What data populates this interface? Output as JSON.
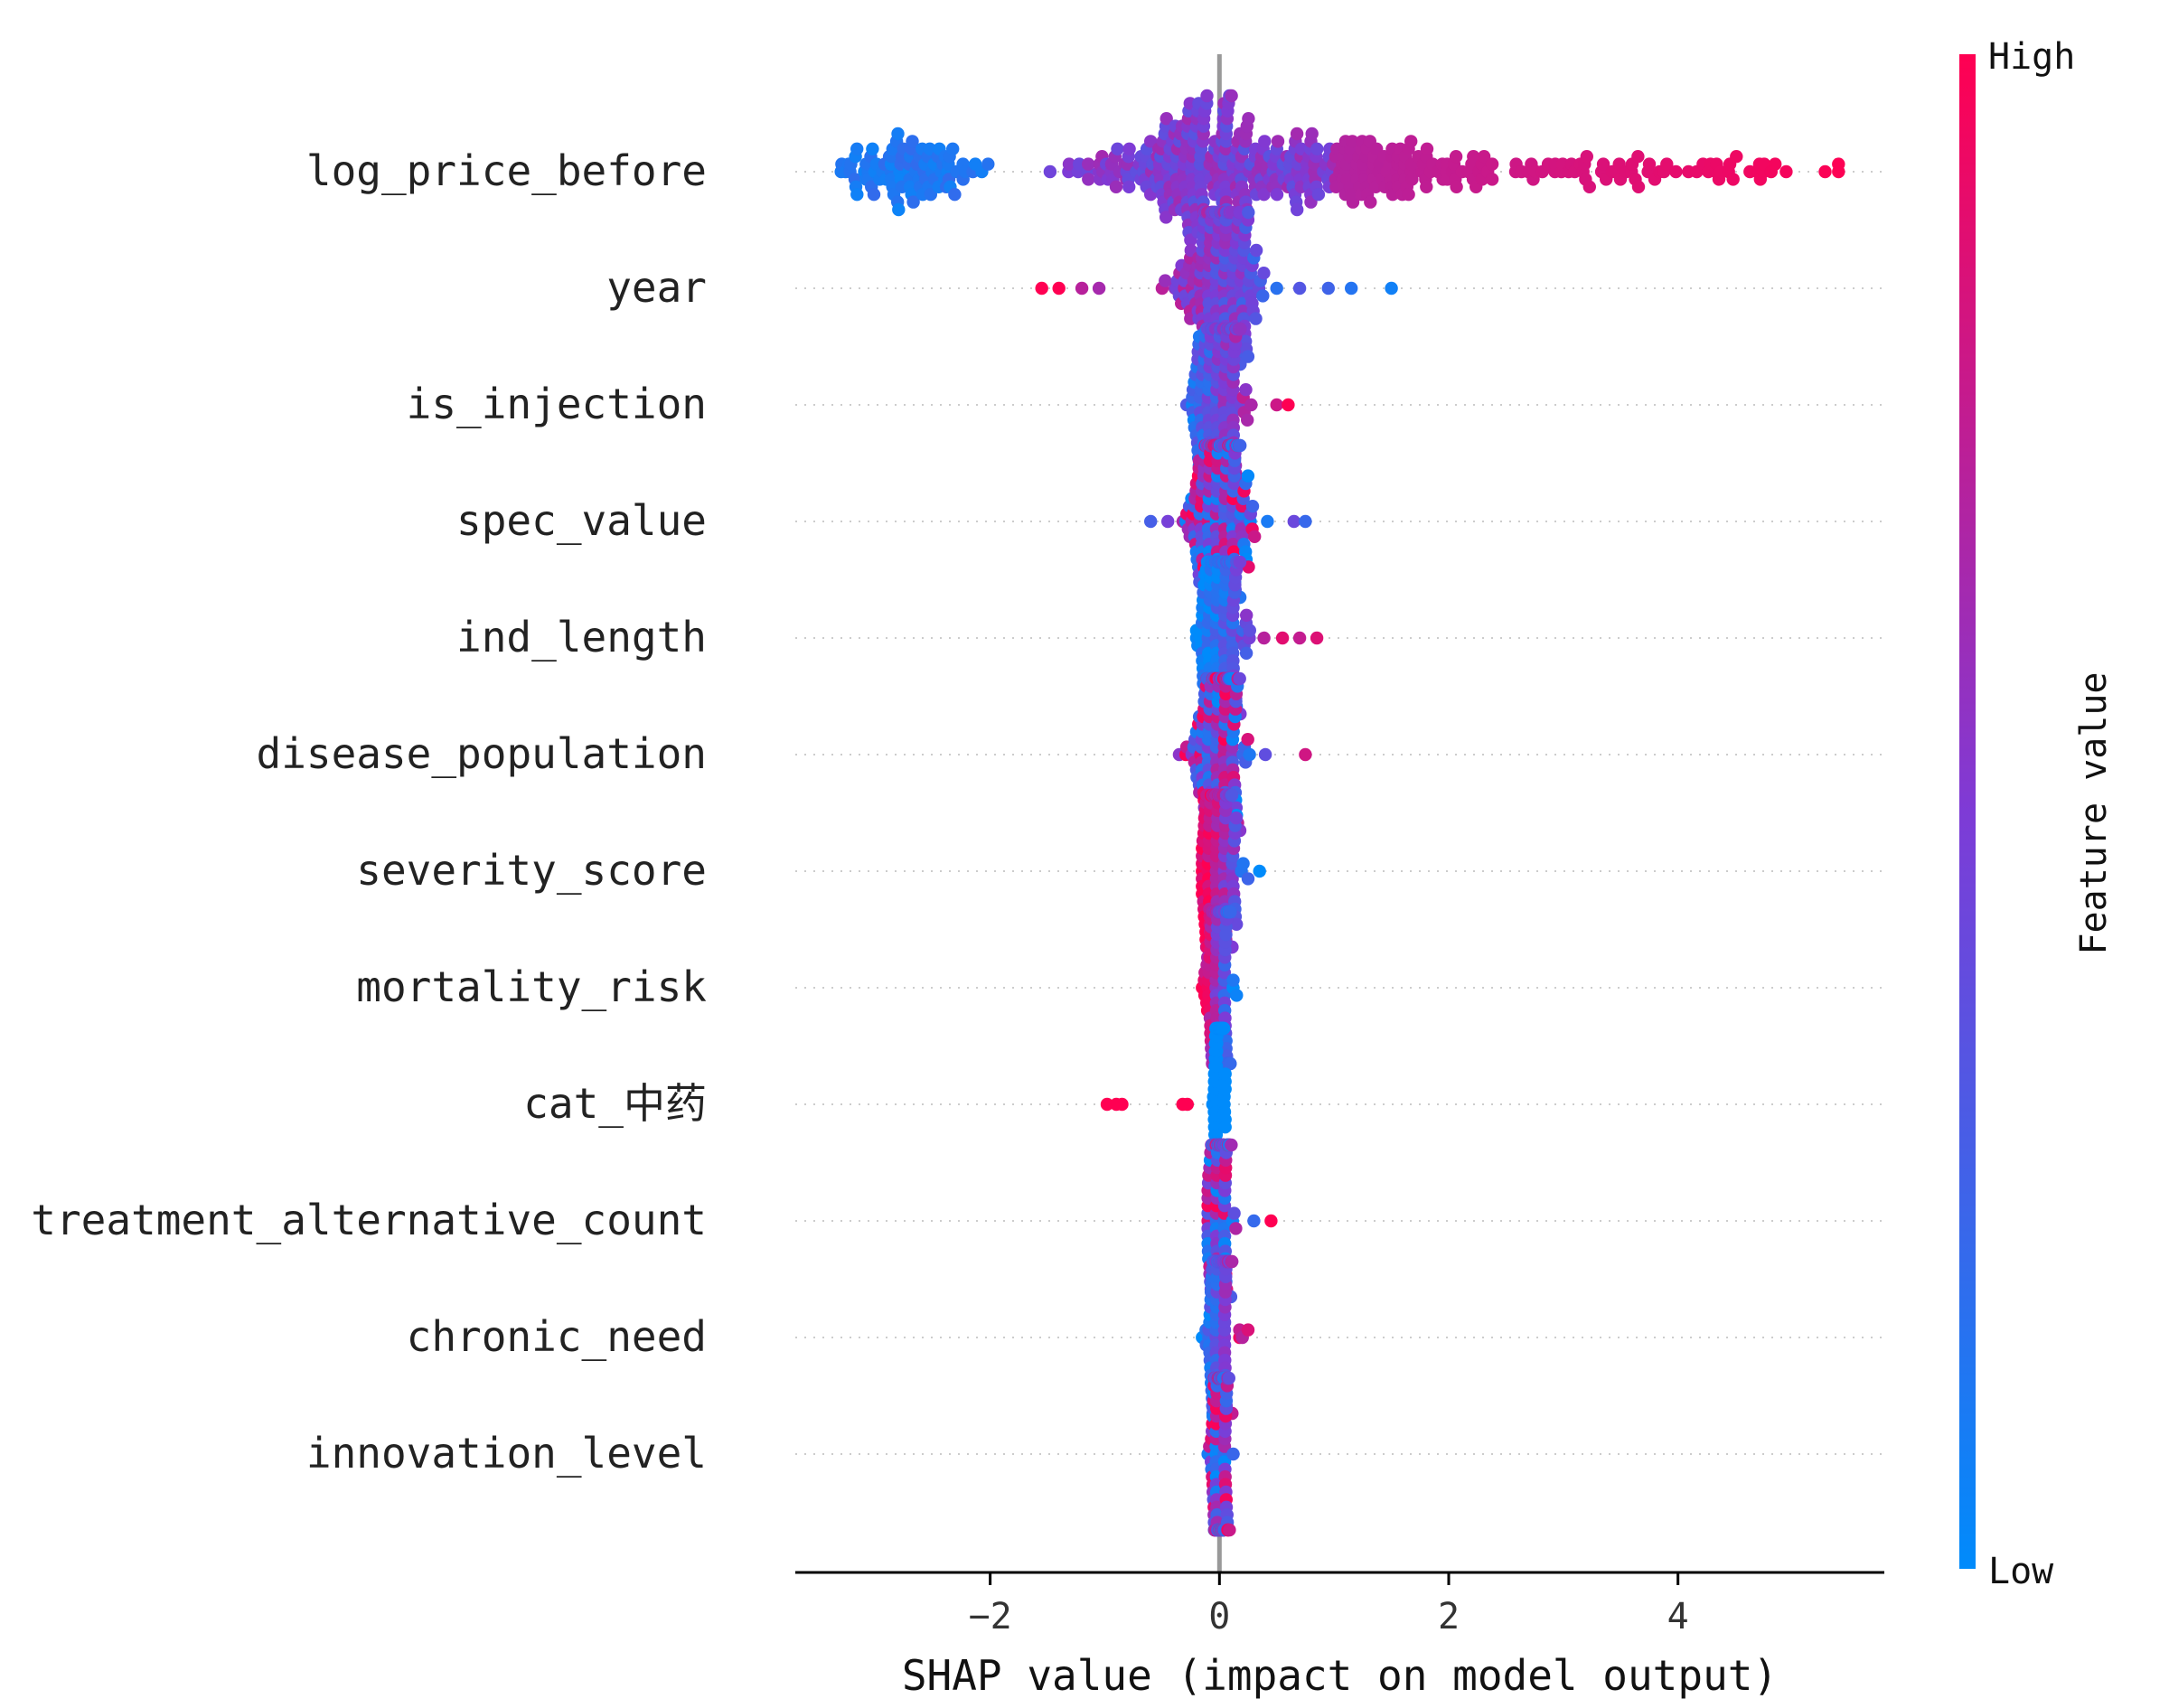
{
  "chart_data": {
    "type": "scatter",
    "subtype": "shap-beeswarm",
    "title": "",
    "xlabel": "SHAP value (impact on model output)",
    "ylabel": "",
    "xlim": [
      -3.7,
      5.8
    ],
    "xticks": [
      -2,
      0,
      2,
      4
    ],
    "grid": false,
    "features": [
      {
        "name": "log_price_before",
        "min": -3.3,
        "max": 5.4,
        "spread": 1.6,
        "count": 560,
        "dir": "pos",
        "weight": 1.0,
        "outliers_low": [],
        "outliers_high": []
      },
      {
        "name": "year",
        "min": -1.6,
        "max": 1.5,
        "spread": 0.35,
        "count": 260,
        "dir": "neg",
        "weight": 0.6,
        "outliers_low": [
          -1.55,
          -1.4,
          -1.2,
          -1.05,
          -0.5,
          -0.35
        ],
        "outliers_high": [
          0.5,
          0.7,
          0.95,
          1.15,
          1.5
        ]
      },
      {
        "name": "is_injection",
        "min": -0.45,
        "max": 0.65,
        "spread": 0.25,
        "count": 260,
        "dir": "pos",
        "weight": 0.55,
        "outliers_low": [],
        "outliers_high": [
          0.6,
          0.5
        ]
      },
      {
        "name": "spec_value",
        "min": -0.6,
        "max": 0.8,
        "spread": 0.3,
        "count": 260,
        "dir": "mixed",
        "weight": 0.5,
        "outliers_low": [
          -0.6,
          -0.45
        ],
        "outliers_high": [
          0.75,
          0.65
        ]
      },
      {
        "name": "ind_length",
        "min": -0.2,
        "max": 0.85,
        "spread": 0.22,
        "count": 220,
        "dir": "pos",
        "weight": 0.45,
        "outliers_low": [],
        "outliers_high": [
          0.85,
          0.7,
          0.55
        ]
      },
      {
        "name": "disease_population",
        "min": -0.35,
        "max": 0.75,
        "spread": 0.22,
        "count": 220,
        "dir": "mixed",
        "weight": 0.4,
        "outliers_low": [
          -0.35,
          -0.2
        ],
        "outliers_high": [
          0.75,
          0.4
        ]
      },
      {
        "name": "severity_score",
        "min": -0.15,
        "max": 0.35,
        "spread": 0.18,
        "count": 200,
        "dir": "neg",
        "weight": 0.35,
        "outliers_low": [],
        "outliers_high": [
          0.35,
          0.25
        ]
      },
      {
        "name": "mortality_risk",
        "min": -0.15,
        "max": 0.15,
        "spread": 0.12,
        "count": 200,
        "dir": "neg",
        "weight": 0.3,
        "outliers_low": [
          -0.15
        ],
        "outliers_high": [
          0.12
        ]
      },
      {
        "name": "cat_中药",
        "min": -1.0,
        "max": 0.05,
        "spread": 0.05,
        "count": 200,
        "dir": "neg",
        "weight": 0.3,
        "outliers_low": [
          -0.98,
          -0.9,
          -0.85,
          -0.32,
          -0.28
        ],
        "outliers_high": []
      },
      {
        "name": "treatment_alternative_count",
        "min": -0.1,
        "max": 0.45,
        "spread": 0.12,
        "count": 200,
        "dir": "mixed",
        "weight": 0.3,
        "outliers_low": [],
        "outliers_high": [
          0.45,
          0.3
        ]
      },
      {
        "name": "chronic_need",
        "min": -0.15,
        "max": 0.25,
        "spread": 0.12,
        "count": 200,
        "dir": "pos",
        "weight": 0.3,
        "outliers_low": [],
        "outliers_high": [
          0.25,
          0.2
        ]
      },
      {
        "name": "innovation_level",
        "min": -0.1,
        "max": 0.12,
        "spread": 0.08,
        "count": 200,
        "dir": "mixed",
        "weight": 0.3,
        "outliers_low": [],
        "outliers_high": [
          0.12
        ]
      }
    ],
    "colorbar": {
      "title": "Feature value",
      "high_label": "High",
      "low_label": "Low",
      "colors": {
        "low": "#008bfb",
        "mid": "#7e3bd6",
        "high": "#ff0052"
      }
    },
    "zero_line_color": "#999999"
  }
}
